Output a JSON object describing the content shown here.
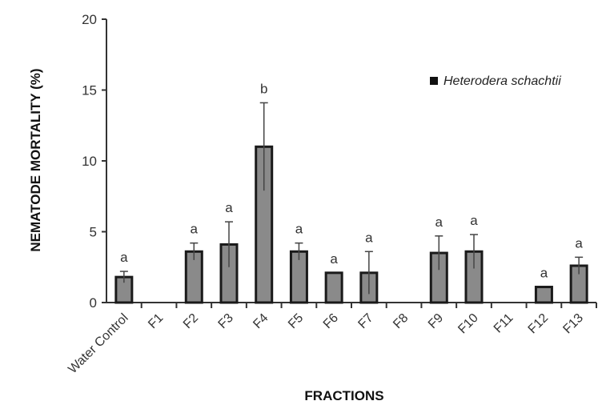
{
  "chart_data": {
    "type": "bar",
    "xlabel": "FRACTIONS",
    "ylabel": "NEMATODE MORTALITY (%)",
    "ylim": [
      0,
      20
    ],
    "yticks": [
      0,
      5,
      10,
      15,
      20
    ],
    "categories": [
      "Water Control",
      "F1",
      "F2",
      "F3",
      "F4",
      "F5",
      "F6",
      "F7",
      "F8",
      "F9",
      "F10",
      "F11",
      "F12",
      "F13"
    ],
    "series": [
      {
        "name": "Heterodera schachtii",
        "values": [
          1.8,
          0,
          3.6,
          4.1,
          11.0,
          3.6,
          2.1,
          2.1,
          0,
          3.5,
          3.6,
          0,
          1.1,
          2.6
        ],
        "errors": [
          0.4,
          0,
          0.6,
          1.6,
          3.1,
          0.6,
          0,
          1.5,
          0,
          1.2,
          1.2,
          0,
          0,
          0.6
        ],
        "annotations": [
          "a",
          "",
          "a",
          "a",
          "b",
          "a",
          "a",
          "a",
          "",
          "a",
          "a",
          "",
          "a",
          "a"
        ]
      }
    ],
    "legend_position": "top-right",
    "grid": false,
    "colors": {
      "bar_fill": "#8a8a8a",
      "bar_stroke": "#1a1a1a",
      "axis": "#333333",
      "legend_marker": "#111111"
    }
  }
}
